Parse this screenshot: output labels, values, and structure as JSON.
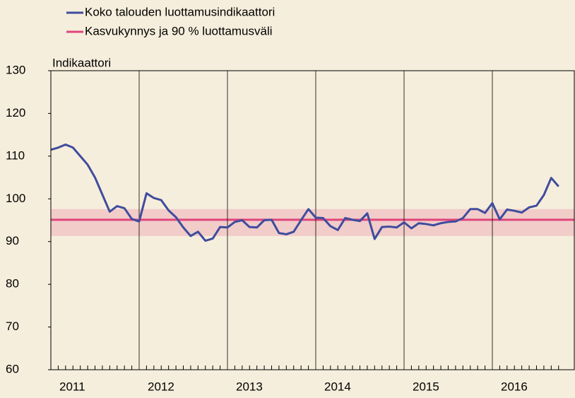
{
  "chart_data": {
    "type": "line",
    "y_label": "Indikaattori",
    "categories": [
      "2011",
      null,
      null,
      null,
      null,
      null,
      null,
      null,
      null,
      null,
      null,
      null,
      "2012",
      null,
      null,
      null,
      null,
      null,
      null,
      null,
      null,
      null,
      null,
      null,
      "2013",
      null,
      null,
      null,
      null,
      null,
      null,
      null,
      null,
      null,
      null,
      null,
      "2014",
      null,
      null,
      null,
      null,
      null,
      null,
      null,
      null,
      null,
      null,
      null,
      "2015",
      null,
      null,
      null,
      null,
      null,
      null,
      null,
      null,
      null,
      null,
      null,
      "2016",
      null,
      null,
      null,
      null,
      null,
      null,
      null,
      null,
      null
    ],
    "series": [
      {
        "name": "Koko talouden luottamusindikaattori",
        "color": "#3f4c9e",
        "values": [
          111.5,
          112,
          112.7,
          112,
          110,
          108,
          105,
          101,
          97,
          98.3,
          97.8,
          95.3,
          94.7,
          101.3,
          100.2,
          99.7,
          97.3,
          95.7,
          93.3,
          91.3,
          92.3,
          90.2,
          90.7,
          93.4,
          93.3,
          94.6,
          95,
          93.4,
          93.3,
          95,
          95.1,
          92,
          91.7,
          92.3,
          95,
          97.6,
          95.6,
          95.5,
          93.6,
          92.7,
          95.5,
          95.1,
          94.8,
          96.6,
          90.6,
          93.4,
          93.5,
          93.3,
          94.5,
          93.1,
          94.3,
          94.1,
          93.8,
          94.3,
          94.6,
          94.7,
          95.5,
          97.6,
          97.6,
          96.7,
          99,
          95.2,
          97.5,
          97.2,
          96.8,
          98,
          98.4,
          100.9,
          104.9,
          102.9
        ]
      }
    ],
    "band": {
      "name": "Kasvukynnys ja 90 % luottamusväli",
      "color": "#e0457c",
      "value": 95.1,
      "lower": 91.3,
      "upper": 97.6
    },
    "ylim": [
      60,
      130
    ],
    "yticks": [
      60,
      70,
      80,
      90,
      100,
      110,
      120,
      130
    ],
    "months_per_year": 12
  }
}
